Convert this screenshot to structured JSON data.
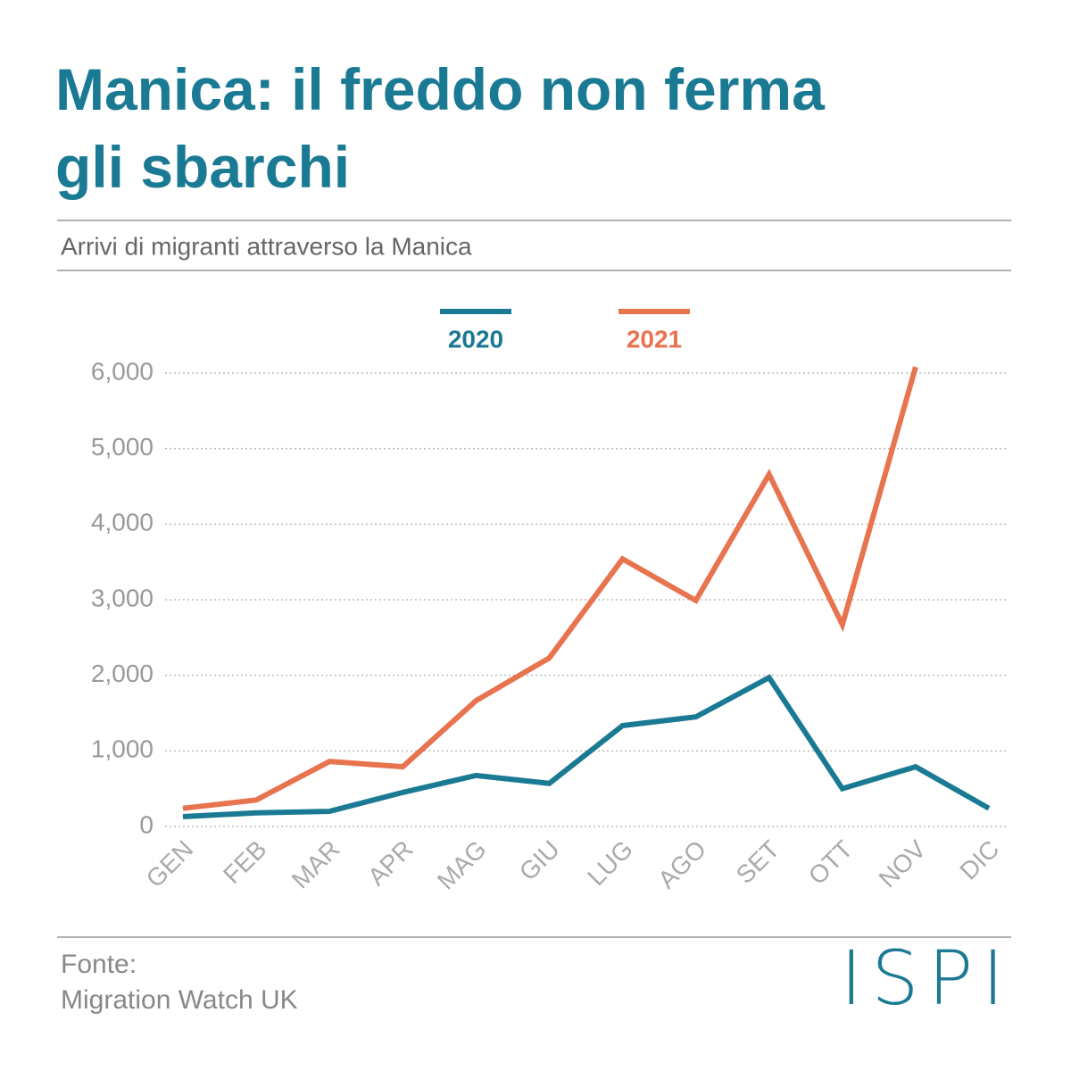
{
  "chart_data": {
    "type": "line",
    "title": [
      "Manica: il freddo non ferma",
      "gli sbarchi"
    ],
    "subtitle": "Arrivi di migranti attraverso la Manica",
    "categories": [
      "GEN",
      "FEB",
      "MAR",
      "APR",
      "MAG",
      "GIU",
      "LUG",
      "AGO",
      "SET",
      "OTT",
      "NOV",
      "DIC"
    ],
    "series": [
      {
        "name": "2020",
        "color": "#1b7a93",
        "values": [
          130,
          180,
          200,
          450,
          675,
          570,
          1335,
          1450,
          1970,
          500,
          790,
          240
        ]
      },
      {
        "name": "2021",
        "color": "#e8734f",
        "values": [
          240,
          350,
          860,
          790,
          1665,
          2230,
          3540,
          2990,
          4660,
          2670,
          6080,
          null
        ]
      }
    ],
    "ylim": [
      0,
      6000
    ],
    "yticks": [
      0,
      {
        "value": 1000,
        "label": "1,000"
      },
      {
        "value": 2000,
        "label": "2,000"
      },
      {
        "value": 3000,
        "label": "3,000"
      },
      {
        "value": 4000,
        "label": "4,000"
      },
      {
        "value": 5000,
        "label": "5,000"
      },
      {
        "value": 6000,
        "label": "6,000"
      }
    ],
    "grid": true,
    "source": [
      "Fonte:",
      "Migration Watch UK"
    ],
    "logo": "ISPI"
  }
}
